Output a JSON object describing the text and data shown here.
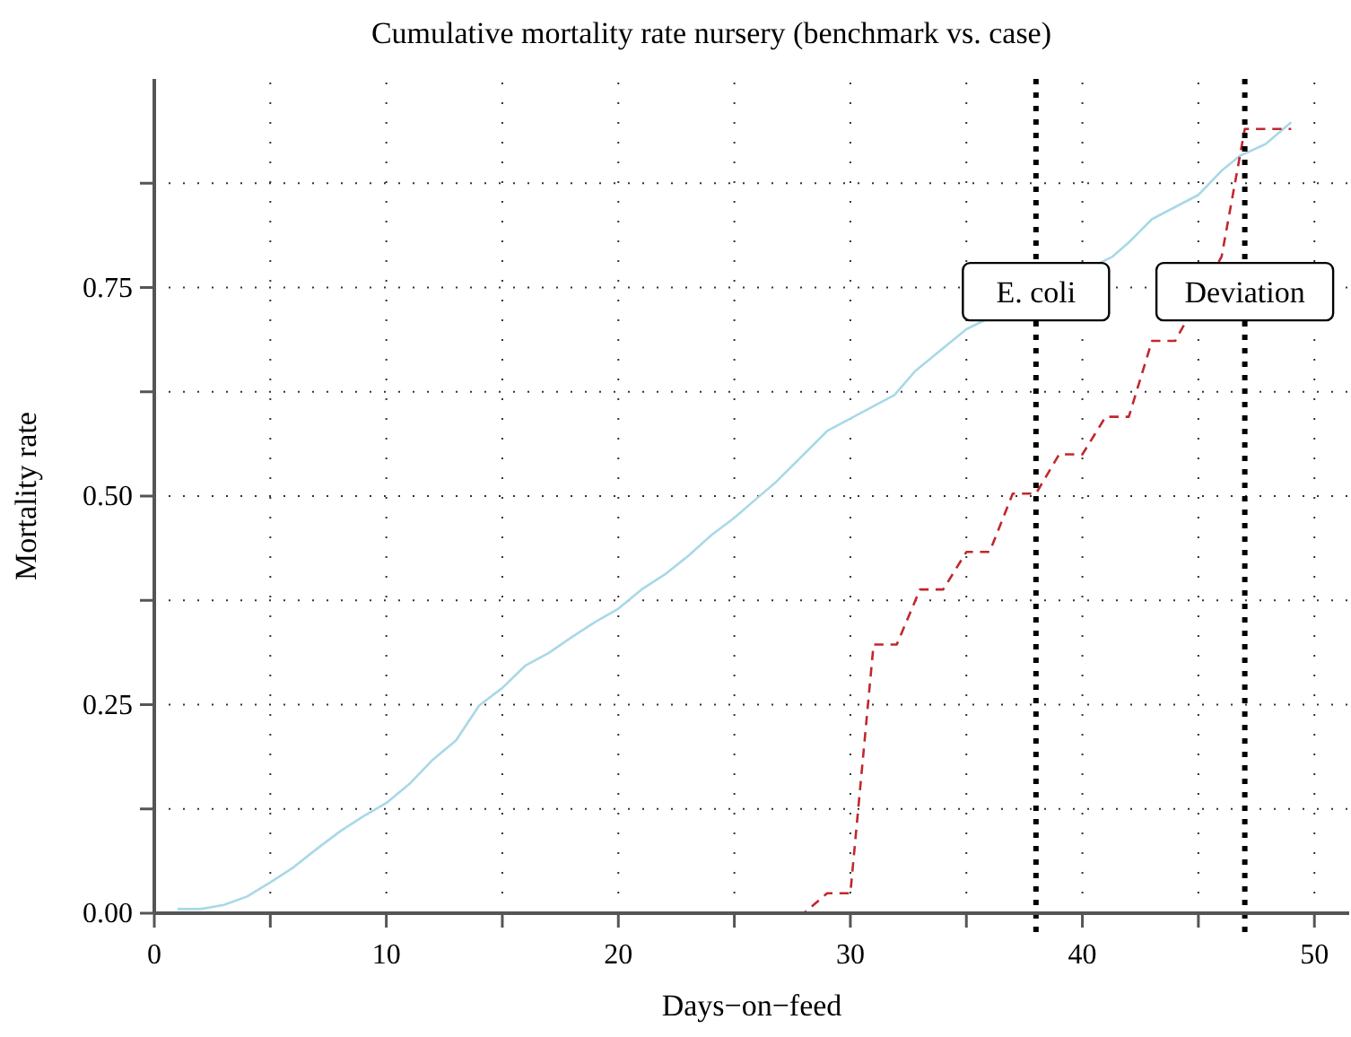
{
  "chart_data": {
    "type": "line",
    "title": "Cumulative mortality rate nursery (benchmark vs. case)",
    "xlabel": "Days−on−feed",
    "ylabel": "Mortality rate",
    "xlim": [
      0,
      51.5
    ],
    "xticks": [
      0,
      {
        "value": 5,
        "label": null
      },
      10,
      {
        "value": 15,
        "label": null
      },
      20,
      {
        "value": 25,
        "label": null
      },
      30,
      {
        "value": 35,
        "label": null
      },
      40,
      {
        "value": 45,
        "label": null
      },
      50
    ],
    "ylim": [
      0,
      1
    ],
    "yticks": [
      {
        "value": 0,
        "label": "0.00"
      },
      {
        "value": 0.125,
        "label": null
      },
      {
        "value": 0.25,
        "label": "0.25"
      },
      {
        "value": 0.375,
        "label": null
      },
      {
        "value": 0.5,
        "label": "0.50"
      },
      {
        "value": 0.625,
        "label": null
      },
      {
        "value": 0.75,
        "label": "0.75"
      },
      {
        "value": 0.875,
        "label": null
      }
    ],
    "grid": true,
    "marker": "none",
    "series": [
      {
        "color": "#a8d8e8",
        "line_style": "solid",
        "x": [
          1,
          2,
          3,
          4,
          5,
          6,
          7,
          8,
          9,
          10,
          11,
          12,
          13,
          14,
          15,
          16,
          17,
          18,
          19,
          20,
          21,
          22,
          23,
          24,
          25,
          26,
          26.8,
          29,
          31.9,
          32.8,
          35,
          41.3,
          42,
          43,
          45,
          46,
          46.8,
          47.9,
          49
        ],
        "values": [
          0.005,
          0.005,
          0.01,
          0.02,
          0.037,
          0.055,
          0.077,
          0.098,
          0.116,
          0.132,
          0.155,
          0.184,
          0.207,
          0.249,
          0.27,
          0.297,
          0.312,
          0.331,
          0.349,
          0.365,
          0.388,
          0.406,
          0.428,
          0.453,
          0.474,
          0.498,
          0.517,
          0.578,
          0.621,
          0.65,
          0.7,
          0.787,
          0.804,
          0.832,
          0.861,
          0.89,
          0.908,
          0.922,
          0.948
        ]
      },
      {
        "color": "#c0282d",
        "line_style": "dashed",
        "x": [
          1,
          28,
          29,
          30,
          31,
          32,
          33,
          34,
          35,
          36,
          37,
          38,
          39,
          40,
          41,
          42,
          43,
          44,
          46,
          47,
          49
        ],
        "values": [
          0,
          0,
          0.024,
          0.024,
          0.322,
          0.322,
          0.388,
          0.388,
          0.433,
          0.433,
          0.503,
          0.503,
          0.55,
          0.55,
          0.595,
          0.595,
          0.686,
          0.686,
          0.787,
          0.94,
          0.94
        ]
      }
    ],
    "ref_lines": [
      {
        "axis": "x",
        "value": 38,
        "label": "E. coli",
        "color": "#000000",
        "line_style": "dotted"
      },
      {
        "axis": "x",
        "value": 47,
        "label": "Deviation",
        "color": "#000000",
        "line_style": "dotted"
      }
    ]
  }
}
